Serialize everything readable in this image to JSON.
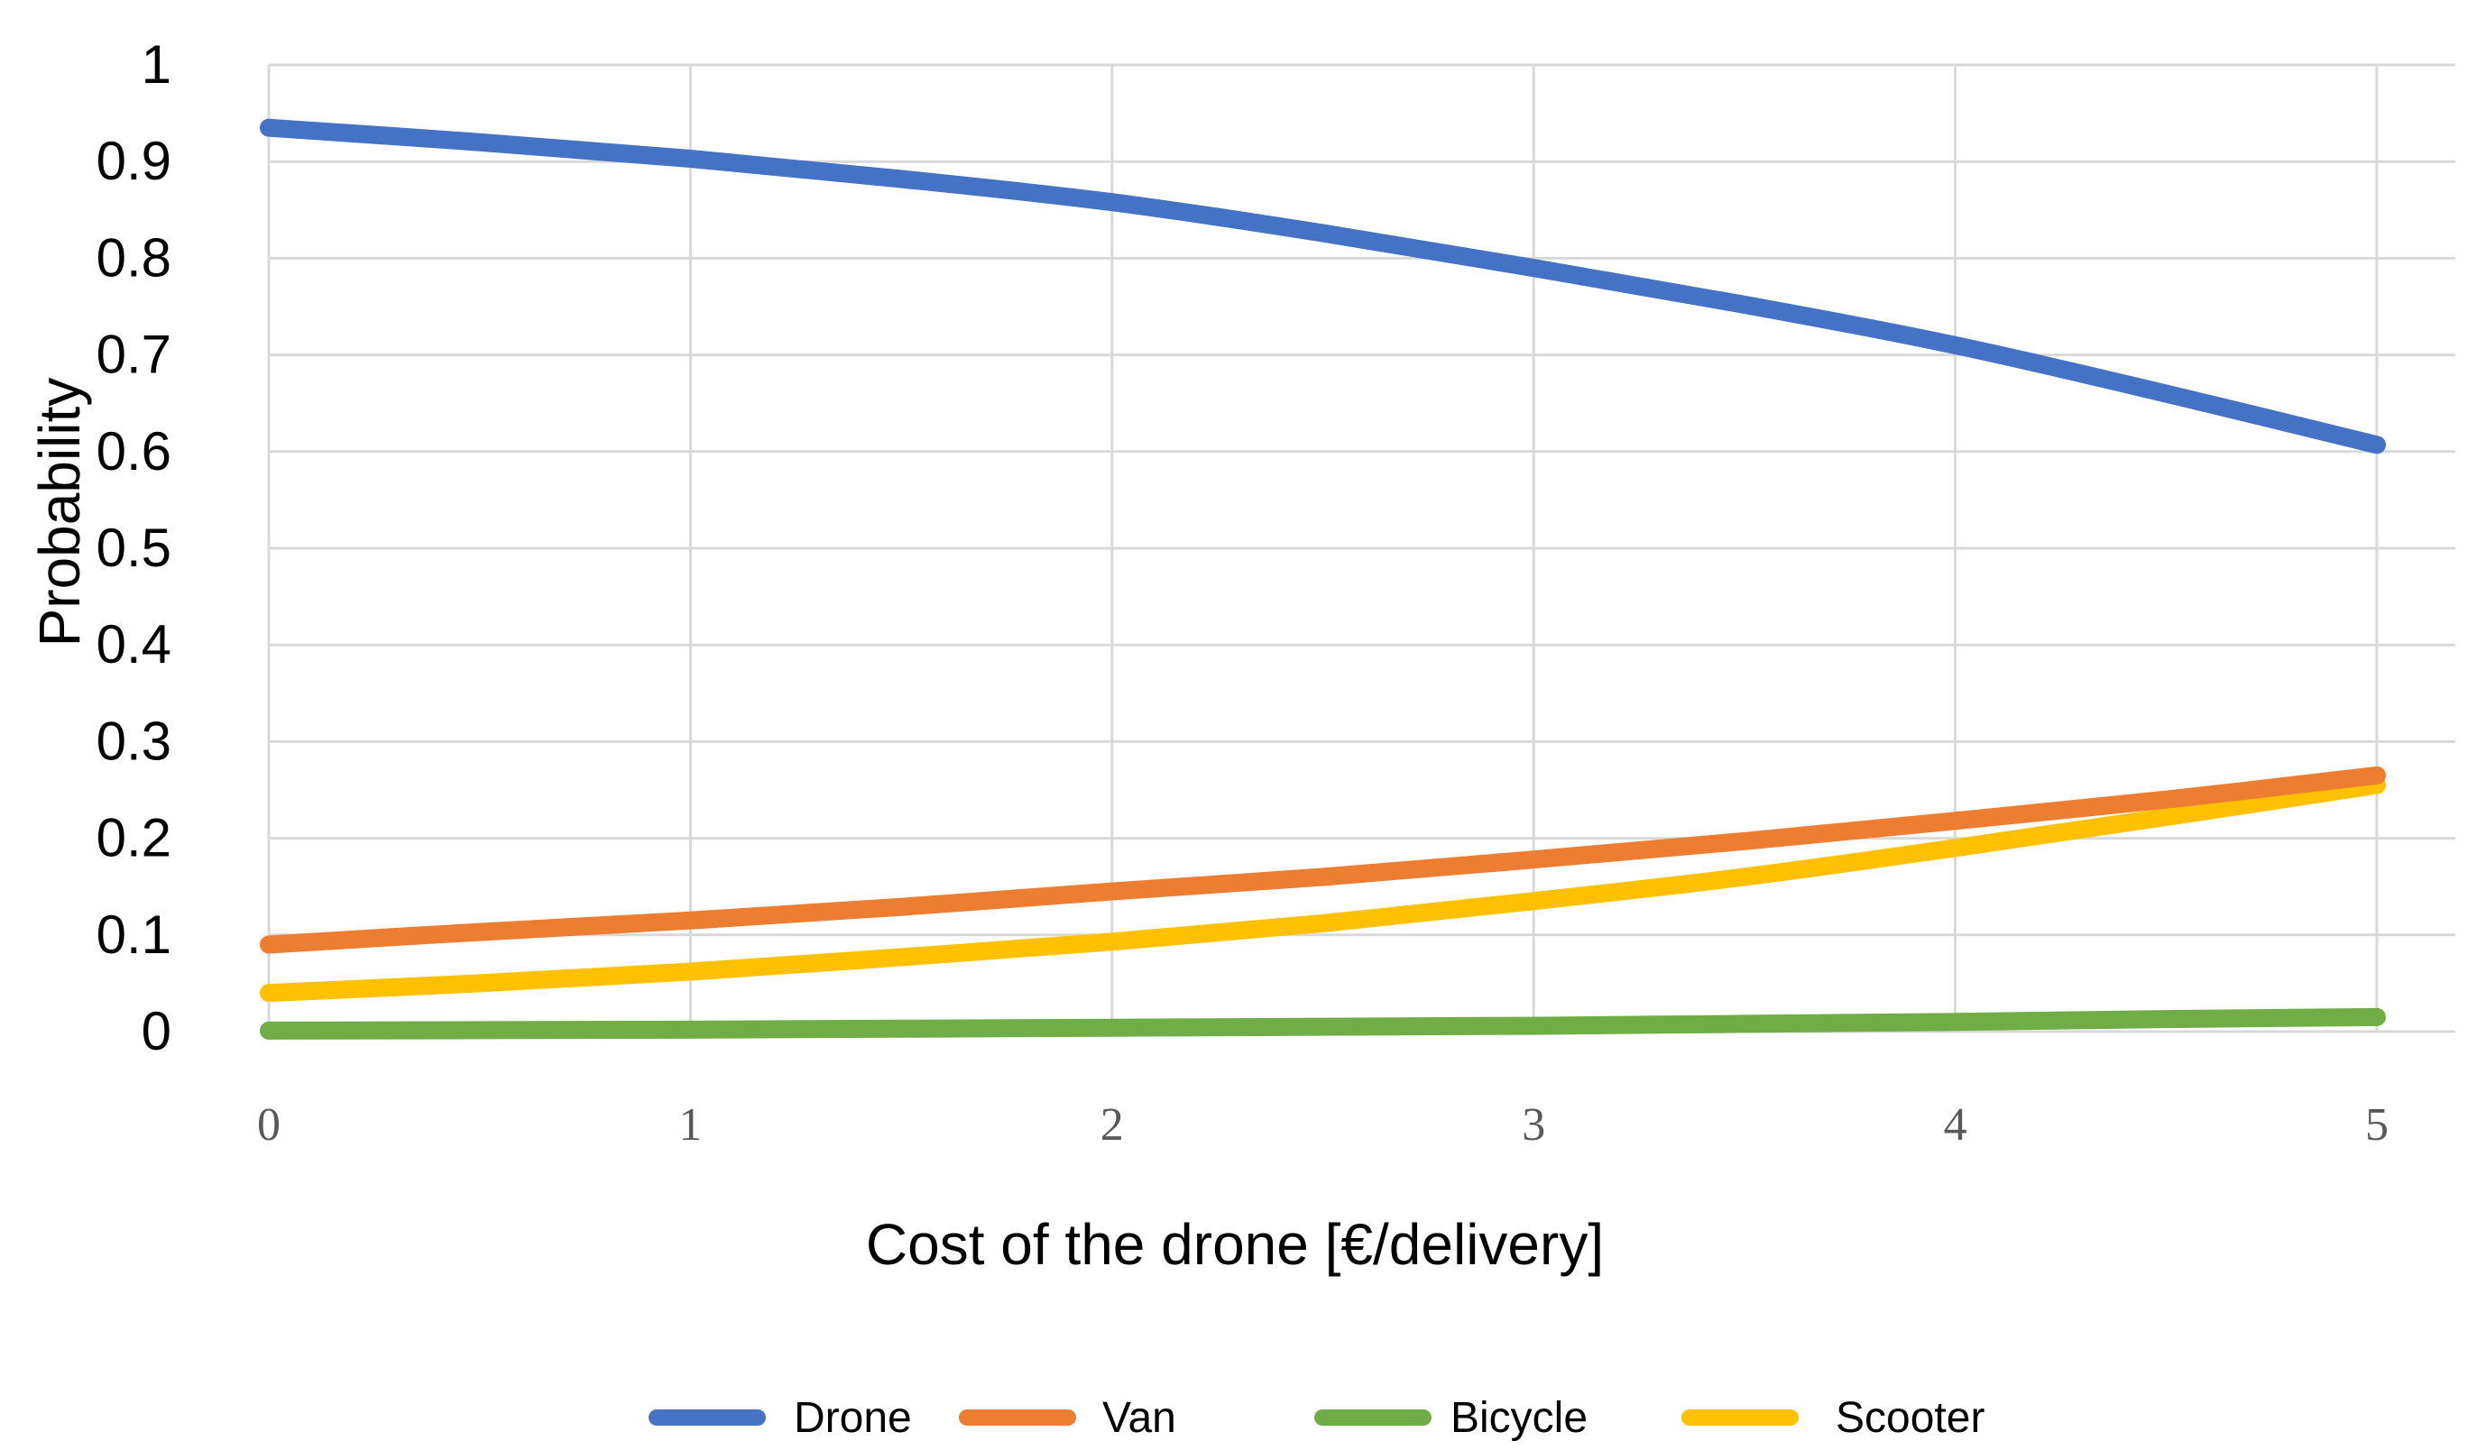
{
  "chart_data": {
    "type": "line",
    "title": "",
    "xlabel": "Cost of the drone [€/delivery]",
    "ylabel": "Probability",
    "xlim": [
      0,
      5
    ],
    "ylim": [
      0,
      1
    ],
    "x_ticks": [
      0,
      1,
      2,
      3,
      4,
      5
    ],
    "y_ticks": [
      0,
      0.1,
      0.2,
      0.3,
      0.4,
      0.5,
      0.6,
      0.7,
      0.8,
      0.9,
      1
    ],
    "grid": true,
    "legend_position": "bottom",
    "x": [
      0,
      0.5,
      1,
      1.5,
      2,
      2.5,
      3,
      3.5,
      4,
      4.5,
      5
    ],
    "series": [
      {
        "name": "Drone",
        "color": "#4472C4",
        "values": [
          0.935,
          0.92,
          0.903,
          0.882,
          0.858,
          0.826,
          0.79,
          0.752,
          0.71,
          0.66,
          0.607
        ]
      },
      {
        "name": "Van",
        "color": "#ED7D31",
        "values": [
          0.09,
          0.103,
          0.115,
          0.129,
          0.145,
          0.16,
          0.178,
          0.197,
          0.218,
          0.24,
          0.265
        ]
      },
      {
        "name": "Bicycle",
        "color": "#70AD47",
        "values": [
          0.001,
          0.0015,
          0.002,
          0.003,
          0.004,
          0.005,
          0.006,
          0.008,
          0.01,
          0.013,
          0.015
        ]
      },
      {
        "name": "Scooter",
        "color": "#FFC000",
        "values": [
          0.04,
          0.05,
          0.062,
          0.077,
          0.093,
          0.112,
          0.135,
          0.16,
          0.19,
          0.222,
          0.255
        ]
      }
    ]
  }
}
